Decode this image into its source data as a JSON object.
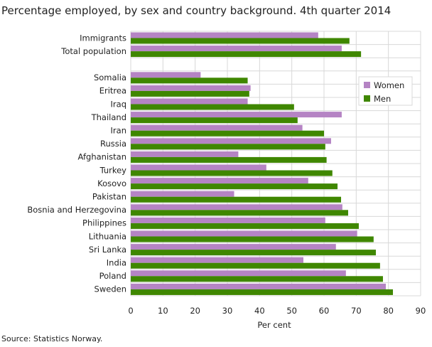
{
  "chart_data": {
    "type": "bar",
    "orientation": "horizontal",
    "title": "Percentage employed, by sex and country background. 4th quarter 2014",
    "xlabel": "Per cent",
    "ylabel": "",
    "xlim": [
      0,
      90
    ],
    "xticks": [
      0,
      10,
      20,
      30,
      40,
      50,
      60,
      70,
      80,
      90
    ],
    "grid": true,
    "legend_position": "top-right",
    "categories": [
      "Immigrants",
      "Total population",
      "",
      "Somalia",
      "Eritrea",
      "Iraq",
      "Thailand",
      "Iran",
      "Russia",
      "Afghanistan",
      "Turkey",
      "Kosovo",
      "Pakistan",
      "Bosnia and Herzegovina",
      "Philippines",
      "Lithuania",
      "Sri Lanka",
      "India",
      "Poland",
      "Sweden"
    ],
    "series": [
      {
        "name": "Women",
        "color": "#b584c4",
        "values": [
          58.2,
          65.5,
          null,
          21.7,
          37.2,
          36.3,
          65.5,
          53.3,
          62.2,
          33.4,
          42.1,
          55.1,
          32.1,
          65.7,
          60.4,
          70.3,
          63.7,
          53.6,
          66.8,
          79.2
        ]
      },
      {
        "name": "Men",
        "color": "#3f8700",
        "values": [
          67.9,
          71.5,
          null,
          36.3,
          36.8,
          50.7,
          51.8,
          60.0,
          60.4,
          60.8,
          62.6,
          64.2,
          65.3,
          67.5,
          70.8,
          75.4,
          76.1,
          77.4,
          78.3,
          81.4
        ]
      }
    ]
  },
  "source": "Source: Statistics Norway."
}
